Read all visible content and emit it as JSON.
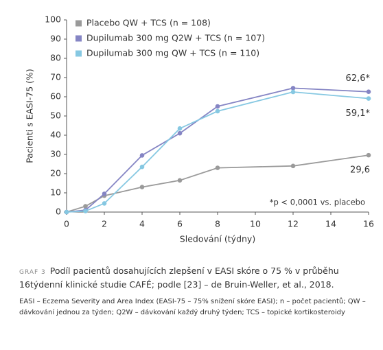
{
  "chart_data": {
    "type": "line",
    "x_label": "Sledování (týdny)",
    "y_label": "Pacienti s EASI-75 (%)",
    "x": [
      0,
      1,
      2,
      4,
      6,
      8,
      12,
      16
    ],
    "series": [
      {
        "name": "Placebo QW + TCS (n = 108)",
        "color": "#9a9a9a",
        "values": [
          0,
          3,
          8.5,
          13,
          16.5,
          23,
          24,
          29.6
        ],
        "value_labels": [
          null,
          null,
          null,
          null,
          null,
          null,
          null,
          "29,6"
        ]
      },
      {
        "name": "Dupilumab 300 mg Q2W + TCS (n = 107)",
        "color": "#8585c4",
        "values": [
          0,
          1,
          9.5,
          29.5,
          41,
          55,
          64.5,
          62.6
        ],
        "value_labels": [
          null,
          null,
          null,
          null,
          null,
          null,
          null,
          "62,6*"
        ]
      },
      {
        "name": "Dupilumab 300 mg QW + TCS (n = 110)",
        "color": "#86c8e2",
        "values": [
          0,
          0.5,
          4.5,
          23.5,
          43.5,
          52.5,
          62.5,
          59.1
        ],
        "value_labels": [
          null,
          null,
          null,
          null,
          null,
          null,
          null,
          "59,1*"
        ]
      }
    ],
    "xlim": [
      0,
      16
    ],
    "xticks": [
      0,
      2,
      4,
      6,
      8,
      10,
      12,
      14,
      16
    ],
    "ylim": [
      0,
      100
    ],
    "yticks": [
      0,
      10,
      20,
      30,
      40,
      50,
      60,
      70,
      80,
      90,
      100
    ],
    "annotation": "*p < 0,0001 vs. placebo",
    "caption_label": "GRAF 3",
    "caption": "Podíl pacientů dosahujících zlepšení v EASI skóre o 75 % v průběhu 16týdenní klinické studie CAFÉ; podle [23] – de Bruin-Weller, et al., 2018.",
    "note": "EASI – Eczema Severity and Area Index (EASI-75 – 75% snížení skóre EASI); n – počet pacientů; QW – dávkování jednou za týden; Q2W – dávkování každý druhý týden; TCS – topické kortikosteroidy"
  }
}
